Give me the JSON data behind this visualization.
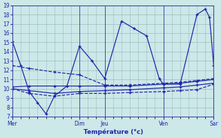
{
  "background_color": "#cce8e8",
  "grid_color": "#99bbbb",
  "line_color": "#2222aa",
  "xlabel": "Température (°c)",
  "ylim": [
    7,
    19
  ],
  "xlim": [
    0,
    24
  ],
  "yticks": [
    7,
    8,
    9,
    10,
    11,
    12,
    13,
    14,
    15,
    16,
    17,
    18,
    19
  ],
  "day_positions": [
    0,
    8,
    11,
    18,
    24
  ],
  "day_labels": [
    "Mer",
    "Dim",
    "Jeu",
    "Ven",
    "Sar"
  ],
  "series1_x": [
    0,
    1,
    2,
    3,
    4,
    5,
    6.5,
    8,
    9.5,
    11,
    13,
    14.5,
    16,
    17.5,
    18,
    20,
    22,
    23,
    23.5,
    24,
    24.5
  ],
  "series1_y": [
    15.1,
    12.5,
    9.7,
    8.5,
    7.3,
    9.2,
    10.3,
    14.6,
    13.0,
    11.1,
    17.3,
    16.5,
    15.7,
    11.1,
    10.5,
    10.5,
    18.0,
    18.6,
    17.7,
    12.5,
    11.1
  ],
  "series2_x": [
    0,
    2,
    5,
    8,
    11,
    14,
    18,
    20,
    22,
    24
  ],
  "series2_y": [
    12.5,
    12.2,
    11.8,
    11.5,
    10.4,
    10.4,
    10.6,
    10.7,
    10.9,
    11.1
  ],
  "series3_x": [
    0,
    2,
    5,
    8,
    11,
    14,
    18,
    20,
    22,
    24
  ],
  "series3_y": [
    10.0,
    9.8,
    9.5,
    9.7,
    9.8,
    9.9,
    10.1,
    10.2,
    10.4,
    10.6
  ],
  "series4_x": [
    0,
    2,
    5,
    8,
    11,
    14,
    18,
    20,
    22,
    24
  ],
  "series4_y": [
    10.2,
    10.3,
    10.3,
    10.3,
    10.3,
    10.3,
    10.5,
    10.6,
    10.8,
    11.0
  ],
  "series5_x": [
    0,
    2,
    5,
    8,
    11,
    14,
    18,
    20,
    22,
    24
  ],
  "series5_y": [
    10.0,
    9.5,
    9.2,
    9.5,
    9.5,
    9.6,
    9.7,
    9.8,
    9.9,
    10.5
  ]
}
